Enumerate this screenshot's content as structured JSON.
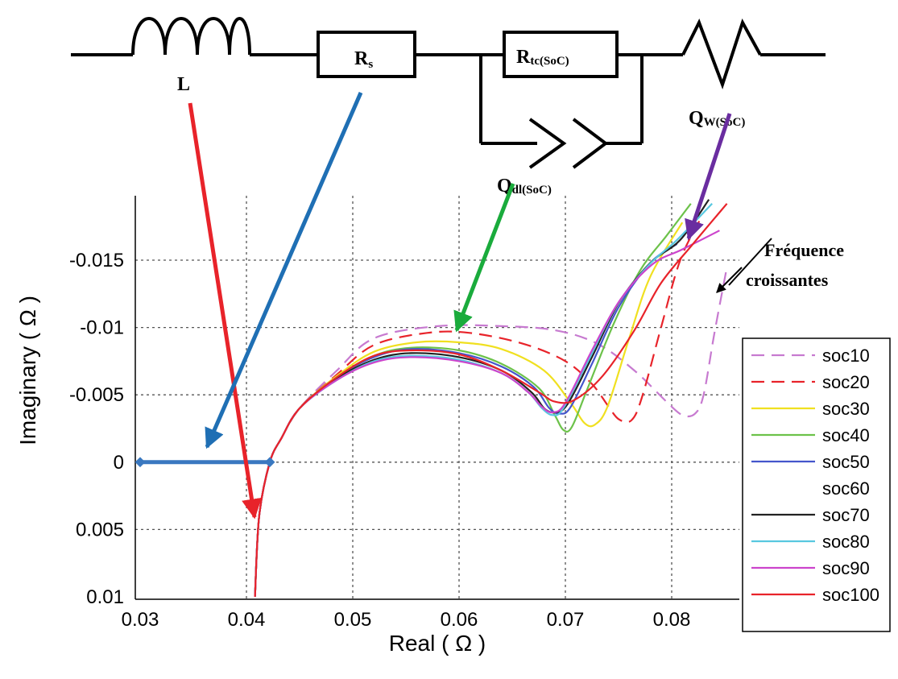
{
  "circuit": {
    "inductor_label": "L",
    "rs_main": "R",
    "rs_sub": "s",
    "rtc_main": "R",
    "rtc_sub": "tc(SoC)",
    "qw_main": "Q",
    "qw_sub": "W(SoC)",
    "qdl_main": "Q",
    "qdl_sub": "dl(SoC)"
  },
  "annotation": {
    "line1": "Fréquence",
    "line2": "croissantes"
  },
  "colors": {
    "arrow_L": "#e8232a",
    "arrow_Rs": "#1f6fb4",
    "arrow_Qdl": "#1aab3c",
    "arrow_Qw": "#6a2da0",
    "rs_segment": "#3a78c0"
  },
  "chart_data": {
    "type": "line",
    "xlabel": "Real ( Ω )",
    "ylabel": "Imaginary ( Ω )",
    "xlim": [
      0.03,
      0.0855
    ],
    "ylim": [
      0.01,
      -0.0195
    ],
    "y_axis_inverted": true,
    "grid": true,
    "x_ticks": [
      {
        "v": 0.03,
        "label": "0.03"
      },
      {
        "v": 0.04,
        "label": "0.04"
      },
      {
        "v": 0.05,
        "label": "0.05"
      },
      {
        "v": 0.06,
        "label": "0.06"
      },
      {
        "v": 0.07,
        "label": "0.07"
      },
      {
        "v": 0.08,
        "label": "0.08"
      }
    ],
    "y_ticks": [
      {
        "v": -0.015,
        "label": "-0.015"
      },
      {
        "v": -0.01,
        "label": "-0.01"
      },
      {
        "v": -0.005,
        "label": "-0.005"
      },
      {
        "v": 0,
        "label": "0"
      },
      {
        "v": 0.005,
        "label": "0.005"
      },
      {
        "v": 0.01,
        "label": "0.01"
      }
    ],
    "legend_position": "right",
    "series": [
      {
        "name": "soc10",
        "color": "#c77ad0",
        "dash": "16,9",
        "points": [
          [
            0.0408,
            0.01
          ],
          [
            0.0412,
            0.004
          ],
          [
            0.0422,
            0.0
          ],
          [
            0.0433,
            -0.0018
          ],
          [
            0.045,
            -0.004
          ],
          [
            0.0485,
            -0.0068
          ],
          [
            0.052,
            -0.0092
          ],
          [
            0.058,
            -0.0101
          ],
          [
            0.064,
            -0.0101
          ],
          [
            0.069,
            -0.0098
          ],
          [
            0.073,
            -0.0088
          ],
          [
            0.0765,
            -0.0068
          ],
          [
            0.0795,
            -0.0045
          ],
          [
            0.081,
            -0.0035
          ],
          [
            0.0822,
            -0.0036
          ],
          [
            0.083,
            -0.005
          ],
          [
            0.084,
            -0.0095
          ],
          [
            0.0852,
            -0.0145
          ]
        ]
      },
      {
        "name": "soc20",
        "color": "#e8232a",
        "dash": "16,9",
        "points": [
          [
            0.0408,
            0.01
          ],
          [
            0.0412,
            0.004
          ],
          [
            0.0422,
            0.0
          ],
          [
            0.0433,
            -0.0018
          ],
          [
            0.045,
            -0.004
          ],
          [
            0.0485,
            -0.0065
          ],
          [
            0.052,
            -0.0087
          ],
          [
            0.057,
            -0.0096
          ],
          [
            0.061,
            -0.0096
          ],
          [
            0.066,
            -0.0088
          ],
          [
            0.07,
            -0.0075
          ],
          [
            0.0725,
            -0.0058
          ],
          [
            0.074,
            -0.0042
          ],
          [
            0.075,
            -0.0032
          ],
          [
            0.0762,
            -0.0031
          ],
          [
            0.0772,
            -0.0048
          ],
          [
            0.079,
            -0.01
          ],
          [
            0.0808,
            -0.015
          ],
          [
            0.0828,
            -0.0182
          ]
        ]
      },
      {
        "name": "soc30",
        "color": "#f0e020",
        "dash": "",
        "points": [
          [
            0.0408,
            0.01
          ],
          [
            0.0412,
            0.004
          ],
          [
            0.0422,
            0.0
          ],
          [
            0.0433,
            -0.0018
          ],
          [
            0.045,
            -0.004
          ],
          [
            0.0485,
            -0.0064
          ],
          [
            0.052,
            -0.0082
          ],
          [
            0.056,
            -0.0089
          ],
          [
            0.06,
            -0.0089
          ],
          [
            0.064,
            -0.0084
          ],
          [
            0.068,
            -0.0068
          ],
          [
            0.0705,
            -0.0044
          ],
          [
            0.0718,
            -0.0029
          ],
          [
            0.0728,
            -0.0028
          ],
          [
            0.074,
            -0.0042
          ],
          [
            0.076,
            -0.0092
          ],
          [
            0.078,
            -0.0138
          ],
          [
            0.081,
            -0.0178
          ]
        ]
      },
      {
        "name": "soc40",
        "color": "#6cc24a",
        "dash": "",
        "points": [
          [
            0.0408,
            0.01
          ],
          [
            0.0412,
            0.004
          ],
          [
            0.0422,
            0.0
          ],
          [
            0.0433,
            -0.0018
          ],
          [
            0.045,
            -0.004
          ],
          [
            0.0485,
            -0.0063
          ],
          [
            0.052,
            -0.0079
          ],
          [
            0.0555,
            -0.0085
          ],
          [
            0.06,
            -0.0083
          ],
          [
            0.064,
            -0.0073
          ],
          [
            0.0675,
            -0.0055
          ],
          [
            0.069,
            -0.0035
          ],
          [
            0.0698,
            -0.0024
          ],
          [
            0.0706,
            -0.0026
          ],
          [
            0.072,
            -0.0053
          ],
          [
            0.0745,
            -0.0102
          ],
          [
            0.077,
            -0.0142
          ],
          [
            0.0795,
            -0.0168
          ],
          [
            0.0818,
            -0.0192
          ]
        ]
      },
      {
        "name": "soc50",
        "color": "#4455cc",
        "dash": "",
        "points": [
          [
            0.0408,
            0.01
          ],
          [
            0.0412,
            0.004
          ],
          [
            0.0422,
            0.0
          ],
          [
            0.0433,
            -0.0018
          ],
          [
            0.045,
            -0.004
          ],
          [
            0.0485,
            -0.0063
          ],
          [
            0.052,
            -0.0078
          ],
          [
            0.0555,
            -0.0084
          ],
          [
            0.06,
            -0.0081
          ],
          [
            0.064,
            -0.0071
          ],
          [
            0.067,
            -0.0056
          ],
          [
            0.0685,
            -0.004
          ],
          [
            0.0695,
            -0.0036
          ],
          [
            0.0705,
            -0.0041
          ],
          [
            0.0725,
            -0.0073
          ],
          [
            0.075,
            -0.0115
          ],
          [
            0.078,
            -0.0148
          ],
          [
            0.0805,
            -0.0162
          ]
        ]
      },
      {
        "name": "soc60",
        "color": "#ffffff",
        "dash": "",
        "points": [
          [
            0.0408,
            0.01
          ],
          [
            0.0412,
            0.004
          ],
          [
            0.0422,
            0.0
          ],
          [
            0.0433,
            -0.0018
          ],
          [
            0.045,
            -0.004
          ],
          [
            0.0485,
            -0.0062
          ],
          [
            0.052,
            -0.0077
          ],
          [
            0.0555,
            -0.0083
          ],
          [
            0.06,
            -0.008
          ],
          [
            0.064,
            -0.007
          ],
          [
            0.0668,
            -0.0055
          ],
          [
            0.068,
            -0.0042
          ],
          [
            0.069,
            -0.0037
          ],
          [
            0.07,
            -0.0042
          ],
          [
            0.072,
            -0.0072
          ],
          [
            0.0745,
            -0.0112
          ],
          [
            0.0775,
            -0.0145
          ],
          [
            0.08,
            -0.0162
          ]
        ]
      },
      {
        "name": "soc70",
        "color": "#222222",
        "dash": "",
        "points": [
          [
            0.0408,
            0.01
          ],
          [
            0.0412,
            0.004
          ],
          [
            0.0422,
            0.0
          ],
          [
            0.0433,
            -0.0018
          ],
          [
            0.045,
            -0.004
          ],
          [
            0.0485,
            -0.0062
          ],
          [
            0.052,
            -0.0076
          ],
          [
            0.0555,
            -0.0081
          ],
          [
            0.06,
            -0.0078
          ],
          [
            0.064,
            -0.0068
          ],
          [
            0.0668,
            -0.0052
          ],
          [
            0.068,
            -0.004
          ],
          [
            0.069,
            -0.0037
          ],
          [
            0.0702,
            -0.0043
          ],
          [
            0.0725,
            -0.0078
          ],
          [
            0.075,
            -0.0118
          ],
          [
            0.078,
            -0.0148
          ],
          [
            0.0808,
            -0.0165
          ],
          [
            0.0835,
            -0.0195
          ]
        ]
      },
      {
        "name": "soc80",
        "color": "#58c8e0",
        "dash": "",
        "points": [
          [
            0.0408,
            0.01
          ],
          [
            0.0412,
            0.004
          ],
          [
            0.0422,
            0.0
          ],
          [
            0.0433,
            -0.0018
          ],
          [
            0.045,
            -0.004
          ],
          [
            0.0485,
            -0.0061
          ],
          [
            0.052,
            -0.0075
          ],
          [
            0.0555,
            -0.0079
          ],
          [
            0.06,
            -0.0076
          ],
          [
            0.064,
            -0.0066
          ],
          [
            0.0665,
            -0.0052
          ],
          [
            0.0678,
            -0.004
          ],
          [
            0.0688,
            -0.0035
          ],
          [
            0.0698,
            -0.004
          ],
          [
            0.0722,
            -0.0076
          ],
          [
            0.0748,
            -0.0116
          ],
          [
            0.0778,
            -0.0146
          ],
          [
            0.0805,
            -0.0165
          ],
          [
            0.0838,
            -0.0192
          ]
        ]
      },
      {
        "name": "soc90",
        "color": "#cc44cc",
        "dash": "",
        "points": [
          [
            0.0408,
            0.01
          ],
          [
            0.0412,
            0.004
          ],
          [
            0.0422,
            0.0
          ],
          [
            0.0433,
            -0.0018
          ],
          [
            0.045,
            -0.004
          ],
          [
            0.0485,
            -0.0061
          ],
          [
            0.052,
            -0.0074
          ],
          [
            0.0555,
            -0.0078
          ],
          [
            0.06,
            -0.0075
          ],
          [
            0.064,
            -0.0066
          ],
          [
            0.0665,
            -0.0052
          ],
          [
            0.0678,
            -0.0041
          ],
          [
            0.0688,
            -0.0037
          ],
          [
            0.07,
            -0.0044
          ],
          [
            0.0725,
            -0.0083
          ],
          [
            0.0752,
            -0.0121
          ],
          [
            0.0782,
            -0.0147
          ],
          [
            0.081,
            -0.0158
          ],
          [
            0.0845,
            -0.0172
          ]
        ]
      },
      {
        "name": "soc100",
        "color": "#e8232a",
        "dash": "",
        "points": [
          [
            0.0408,
            0.01
          ],
          [
            0.0412,
            0.004
          ],
          [
            0.0422,
            0.0
          ],
          [
            0.0433,
            -0.0018
          ],
          [
            0.045,
            -0.004
          ],
          [
            0.0485,
            -0.0063
          ],
          [
            0.052,
            -0.0079
          ],
          [
            0.0555,
            -0.0083
          ],
          [
            0.06,
            -0.008
          ],
          [
            0.064,
            -0.0068
          ],
          [
            0.0675,
            -0.0052
          ],
          [
            0.069,
            -0.0045
          ],
          [
            0.0708,
            -0.0046
          ],
          [
            0.0735,
            -0.0064
          ],
          [
            0.0765,
            -0.0098
          ],
          [
            0.079,
            -0.0133
          ],
          [
            0.082,
            -0.0162
          ],
          [
            0.0852,
            -0.0192
          ]
        ]
      }
    ]
  }
}
